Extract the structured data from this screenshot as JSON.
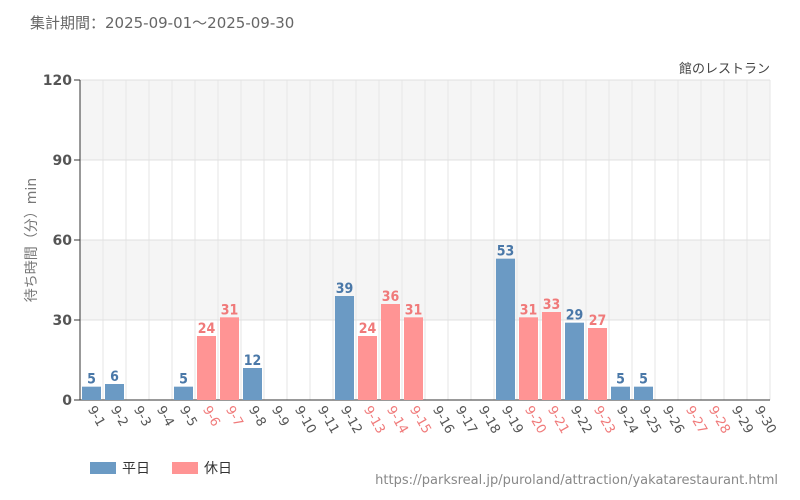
{
  "header": {
    "period_label": "集計期間：2025-09-01～2025-09-30"
  },
  "chart_data": {
    "type": "bar",
    "title": "館のレストラン",
    "ylabel": "待ち時間（分）min",
    "ylim": [
      0,
      120
    ],
    "yticks": [
      0,
      30,
      60,
      90,
      120
    ],
    "grid": true,
    "categories": [
      "9-1",
      "9-2",
      "9-3",
      "9-4",
      "9-5",
      "9-6",
      "9-7",
      "9-8",
      "9-9",
      "9-10",
      "9-11",
      "9-12",
      "9-13",
      "9-14",
      "9-15",
      "9-16",
      "9-17",
      "9-18",
      "9-19",
      "9-20",
      "9-21",
      "9-22",
      "9-23",
      "9-24",
      "9-25",
      "9-26",
      "9-27",
      "9-28",
      "9-29",
      "9-30"
    ],
    "values": [
      5,
      6,
      null,
      null,
      5,
      24,
      31,
      12,
      null,
      null,
      null,
      39,
      24,
      36,
      31,
      null,
      null,
      null,
      53,
      31,
      33,
      29,
      27,
      5,
      5,
      null,
      null,
      null,
      null,
      null
    ],
    "day_type": [
      "weekday",
      "weekday",
      "weekday",
      "weekday",
      "weekday",
      "holiday",
      "holiday",
      "weekday",
      "weekday",
      "weekday",
      "weekday",
      "weekday",
      "holiday",
      "holiday",
      "holiday",
      "weekday",
      "weekday",
      "weekday",
      "weekday",
      "holiday",
      "holiday",
      "weekday",
      "holiday",
      "weekday",
      "weekday",
      "weekday",
      "holiday",
      "holiday",
      "weekday",
      "weekday"
    ],
    "series": [
      {
        "name": "平日",
        "color": "#6b9ac4"
      },
      {
        "name": "休日",
        "color": "#ff9494"
      }
    ],
    "colors": {
      "weekday_bar": "#6b9ac4",
      "holiday_bar": "#ff9494",
      "weekday_text": "#4a78a8",
      "holiday_text": "#f07a7a",
      "axis_text": "#555555"
    },
    "legend_placement": "bottom-left"
  },
  "footer": {
    "source_url": "https://parksreal.jp/puroland/attraction/yakatarestaurant.html"
  }
}
